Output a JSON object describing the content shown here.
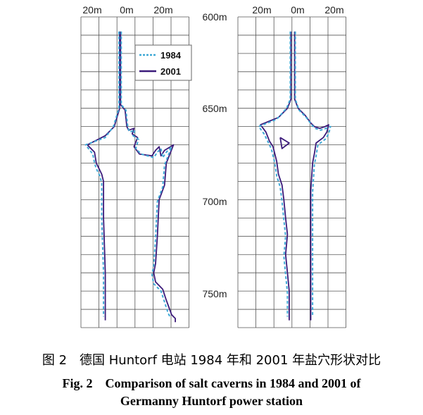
{
  "chart_data": {
    "type": "line",
    "x_tick_labels": [
      "20m",
      "0m",
      "20m"
    ],
    "y_tick_labels": [
      "600m",
      "650m",
      "700m",
      "750m"
    ],
    "y_range": [
      600,
      770
    ],
    "x_range": [
      -20,
      30
    ],
    "grid": true,
    "legend_position": "top-right of left panel",
    "series_colors": {
      "1984": "#3fa9d6",
      "2001": "#3b1a7a"
    },
    "legend": [
      {
        "name": "1984",
        "style": "dashed",
        "color": "#3fa9d6"
      },
      {
        "name": "2001",
        "style": "solid",
        "color": "#3b1a7a"
      }
    ],
    "panels": [
      {
        "name": "left",
        "series": [
          {
            "name": "2001",
            "left_wall": [
              [
                0,
                608
              ],
              [
                0,
                650
              ],
              [
                -3,
                660
              ],
              [
                -8,
                665
              ],
              [
                -18,
                670
              ],
              [
                -14,
                674
              ],
              [
                -13,
                680
              ],
              [
                -12,
                682
              ],
              [
                -10,
                686
              ],
              [
                -9,
                690
              ],
              [
                -9,
                710
              ],
              [
                -8,
                740
              ],
              [
                -8,
                766
              ]
            ],
            "right_wall": [
              [
                0.5,
                608
              ],
              [
                0.5,
                648
              ],
              [
                3,
                651
              ],
              [
                4,
                660
              ],
              [
                5,
                662
              ],
              [
                8,
                661
              ],
              [
                7,
                664
              ],
              [
                10,
                666
              ],
              [
                8,
                671
              ],
              [
                11,
                675
              ],
              [
                18,
                676
              ],
              [
                20,
                673
              ],
              [
                22,
                671
              ],
              [
                23,
                676
              ],
              [
                25,
                673
              ],
              [
                30,
                670
              ],
              [
                26,
                680
              ],
              [
                25,
                692
              ],
              [
                22,
                700
              ],
              [
                21,
                720
              ],
              [
                20,
                735
              ],
              [
                19,
                740
              ],
              [
                20,
                745
              ],
              [
                24,
                749
              ],
              [
                26,
                755
              ],
              [
                29,
                763
              ],
              [
                31,
                765
              ],
              [
                31,
                767
              ]
            ]
          },
          {
            "name": "1984",
            "left_wall": [
              [
                -0.4,
                608
              ],
              [
                -0.4,
                650
              ],
              [
                -3.5,
                660
              ],
              [
                -8,
                666
              ],
              [
                -19,
                670
              ],
              [
                -15,
                675
              ],
              [
                -14,
                680
              ],
              [
                -13,
                683
              ],
              [
                -11,
                687
              ],
              [
                -10,
                691
              ],
              [
                -10,
                710
              ],
              [
                -9,
                740
              ],
              [
                -9,
                764
              ]
            ],
            "right_wall": [
              [
                0.9,
                608
              ],
              [
                0.9,
                648
              ],
              [
                3.5,
                651
              ],
              [
                4.5,
                660
              ],
              [
                5.5,
                663
              ],
              [
                8.5,
                662
              ],
              [
                7.5,
                665
              ],
              [
                10.5,
                667
              ],
              [
                9,
                672
              ],
              [
                12,
                675
              ],
              [
                19,
                677
              ],
              [
                21,
                674
              ],
              [
                23,
                672
              ],
              [
                24,
                677
              ],
              [
                26,
                674
              ],
              [
                29,
                671
              ],
              [
                25,
                681
              ],
              [
                24,
                693
              ],
              [
                21,
                701
              ],
              [
                20,
                721
              ],
              [
                19,
                736
              ],
              [
                18,
                741
              ],
              [
                19,
                746
              ],
              [
                23,
                750
              ],
              [
                25,
                756
              ],
              [
                27,
                762
              ],
              [
                28,
                764
              ]
            ]
          }
        ]
      },
      {
        "name": "right",
        "series": [
          {
            "name": "2001",
            "left_wall": [
              [
                -1,
                608
              ],
              [
                -1,
                645
              ],
              [
                -3,
                650
              ],
              [
                -8,
                655
              ],
              [
                -18,
                659
              ],
              [
                -15,
                663
              ],
              [
                -13,
                668
              ],
              [
                -11,
                671
              ],
              [
                -9,
                679
              ],
              [
                -8,
                686
              ],
              [
                -6,
                692
              ],
              [
                -5,
                700
              ],
              [
                -4,
                710
              ],
              [
                -3,
                719
              ],
              [
                -4,
                730
              ],
              [
                -3,
                740
              ],
              [
                -2,
                750
              ],
              [
                -2,
                766
              ]
            ],
            "right_wall": [
              [
                1,
                608
              ],
              [
                1,
                645
              ],
              [
                3,
                650
              ],
              [
                7,
                654
              ],
              [
                10,
                658
              ],
              [
                12,
                660
              ],
              [
                15,
                661
              ],
              [
                18,
                660
              ],
              [
                20,
                659
              ],
              [
                19,
                663
              ],
              [
                17,
                666
              ],
              [
                13,
                669
              ],
              [
                12,
                675
              ],
              [
                11,
                680
              ],
              [
                10,
                695
              ],
              [
                10,
                720
              ],
              [
                10,
                740
              ],
              [
                10,
                766
              ]
            ],
            "inner_mark": [
              [
                -7,
                666
              ],
              [
                -6,
                672
              ],
              [
                -2,
                669
              ],
              [
                -7,
                666
              ]
            ]
          },
          {
            "name": "1984",
            "left_wall": [
              [
                -1.4,
                608
              ],
              [
                -1.4,
                645
              ],
              [
                -3.5,
                650
              ],
              [
                -9,
                656
              ],
              [
                -19,
                660
              ],
              [
                -16,
                664
              ],
              [
                -14,
                668
              ],
              [
                -12,
                672
              ],
              [
                -10,
                680
              ],
              [
                -9,
                687
              ],
              [
                -7,
                693
              ],
              [
                -6,
                701
              ],
              [
                -5,
                711
              ],
              [
                -4,
                720
              ],
              [
                -5,
                731
              ],
              [
                -4,
                741
              ],
              [
                -3,
                751
              ],
              [
                -3,
                764
              ]
            ],
            "right_wall": [
              [
                1.4,
                608
              ],
              [
                1.4,
                645
              ],
              [
                3.5,
                651
              ],
              [
                7.5,
                655
              ],
              [
                10.5,
                659
              ],
              [
                12.5,
                661
              ],
              [
                15.5,
                662
              ],
              [
                18.5,
                661
              ],
              [
                21,
                660
              ],
              [
                20,
                664
              ],
              [
                18,
                667
              ],
              [
                14,
                670
              ],
              [
                13,
                676
              ],
              [
                12,
                681
              ],
              [
                11,
                696
              ],
              [
                11,
                721
              ],
              [
                11,
                741
              ],
              [
                11,
                764
              ]
            ]
          }
        ]
      }
    ]
  },
  "captions": {
    "zh": "图 2　德国 Huntorf 电站 1984 年和 2001 年盐穴形状对比",
    "en_line1": "Fig. 2　Comparison of salt caverns in 1984 and 2001 of",
    "en_line2": "Germanny Huntorf power station"
  }
}
